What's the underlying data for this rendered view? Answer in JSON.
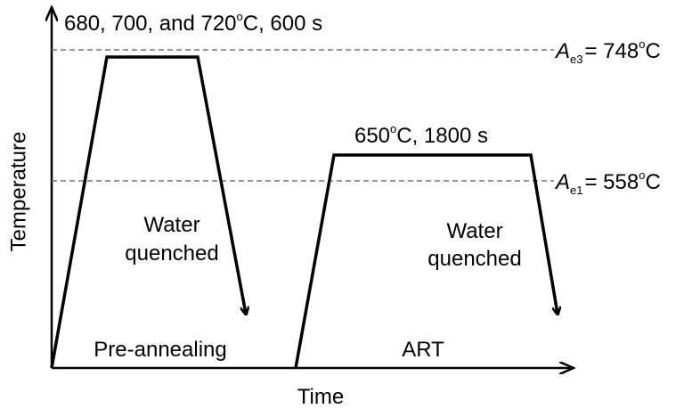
{
  "axes": {
    "y_label": "Temperature",
    "x_label": "Time"
  },
  "stages": [
    {
      "hold_label": [
        "680, 700, and 720",
        "o",
        "C, 600 s"
      ],
      "cooling_label": [
        "Water",
        "quenched"
      ],
      "name": "Pre-annealing"
    },
    {
      "hold_label": [
        "650",
        "o",
        "C, 1800 s"
      ],
      "cooling_label": [
        "Water",
        "quenched"
      ],
      "name": "ART"
    }
  ],
  "reference_lines": [
    {
      "symbol": "A",
      "subscript": "e3",
      "value": "= 748",
      "degree": "o",
      "unit": "C"
    },
    {
      "symbol": "A",
      "subscript": "e1",
      "value": "= 558",
      "degree": "o",
      "unit": "C"
    }
  ]
}
